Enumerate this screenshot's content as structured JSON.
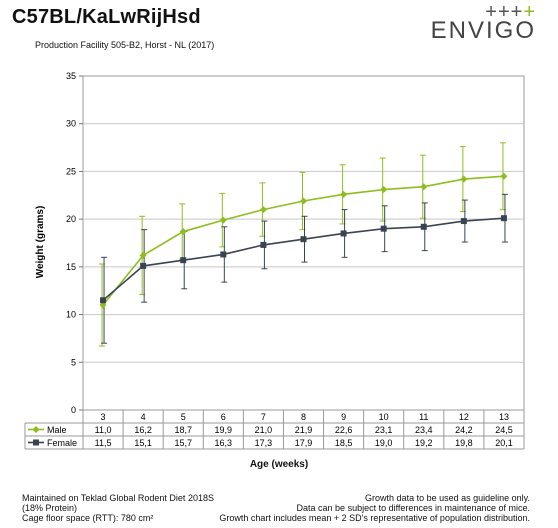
{
  "header": {
    "title": "C57BL/KaLwRijHsd",
    "subtitle": "Production Facility 505-B2, Horst - NL (2017)"
  },
  "logo": {
    "plus_grey": "+++",
    "plus_green": "+",
    "text": "ENVIGO"
  },
  "chart_data": {
    "type": "line",
    "title": "",
    "xlabel": "Age (weeks)",
    "ylabel": "Weight (grams)",
    "ylim": [
      0,
      35
    ],
    "yticks": [
      0,
      5,
      10,
      15,
      20,
      25,
      30,
      35
    ],
    "grid": true,
    "categories": [
      "3",
      "4",
      "5",
      "6",
      "7",
      "8",
      "9",
      "10",
      "11",
      "12",
      "13"
    ],
    "series": [
      {
        "name": "Male",
        "color": "#8dbe1f",
        "marker": "diamond",
        "values": [
          11.0,
          16.2,
          18.7,
          19.9,
          21.0,
          21.9,
          22.6,
          23.1,
          23.4,
          24.2,
          24.5
        ],
        "labels": [
          "11,0",
          "16,2",
          "18,7",
          "19,9",
          "21,0",
          "21,9",
          "22,6",
          "23,1",
          "23,4",
          "24,2",
          "24,5"
        ],
        "sd2": [
          4.3,
          4.1,
          2.9,
          2.8,
          2.8,
          3.0,
          3.1,
          3.3,
          3.3,
          3.4,
          3.5
        ]
      },
      {
        "name": "Female",
        "color": "#3a4450",
        "marker": "square",
        "values": [
          11.5,
          15.1,
          15.7,
          16.3,
          17.3,
          17.9,
          18.5,
          19.0,
          19.2,
          19.8,
          20.1
        ],
        "labels": [
          "11,5",
          "15,1",
          "15,7",
          "16,3",
          "17,3",
          "17,9",
          "18,5",
          "19,0",
          "19,2",
          "19,8",
          "20,1"
        ],
        "sd2": [
          4.5,
          3.8,
          3.0,
          2.9,
          2.5,
          2.4,
          2.5,
          2.4,
          2.5,
          2.2,
          2.5
        ]
      }
    ]
  },
  "footer": {
    "left": [
      "Maintained on Teklad Global Rodent Diet 2018S",
      "(18% Protein)",
      "Cage floor space (RTT): 780 cm²"
    ],
    "right": [
      "Growth data to be used as guideline only.",
      "Data can be subject to differences in maintenance of mice.",
      "Growth chart includes mean + 2 SD's representative of population distribution."
    ]
  }
}
